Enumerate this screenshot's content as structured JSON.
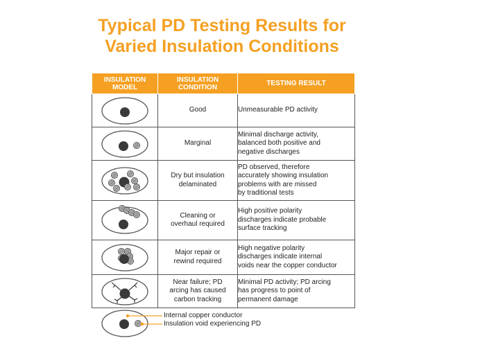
{
  "title": {
    "line1": "Typical PD Testing Results for",
    "line2": "Varied Insulation Conditions"
  },
  "headers": {
    "model_l1": "INSULATION",
    "model_l2": "MODEL",
    "condition_l1": "INSULATION",
    "condition_l2": "CONDITION",
    "result": "TESTING RESULT"
  },
  "rows": [
    {
      "model": "good",
      "condition": [
        "Good"
      ],
      "result": [
        "Unmeasurable PD activity"
      ]
    },
    {
      "model": "marginal",
      "condition": [
        "Marginal"
      ],
      "result": [
        "Minimal discharge activity,",
        "balanced both positive and",
        "negative discharges"
      ]
    },
    {
      "model": "delaminated",
      "condition": [
        "Dry but insulation",
        "delaminated"
      ],
      "result": [
        "PD observed, therefore",
        "accurately showing insulation",
        "problems with are missed",
        "by traditional tests"
      ]
    },
    {
      "model": "surface",
      "condition": [
        "Cleaning or",
        "overhaul required"
      ],
      "result": [
        "High positive polarity",
        "discharges indicate probable",
        "surface tracking"
      ]
    },
    {
      "model": "internal",
      "condition": [
        "Major repair or",
        "rewind required"
      ],
      "result": [
        "High negative polarity",
        "discharges indicate internal",
        "voids near the copper conductor"
      ]
    },
    {
      "model": "carbon",
      "condition": [
        "Near failure; PD",
        "arcing has caused",
        "carbon tracking"
      ],
      "result": [
        "Minimal PD activity; PD arcing",
        "has progress to point of",
        "permanent damage"
      ]
    }
  ],
  "legend": {
    "conductor": "Internal copper conductor",
    "void": "Insulation void experiencing PD"
  },
  "colors": {
    "accent": "#f5a022",
    "conductor": "#3a3a3a",
    "void": "#d0d0d0",
    "border": "#555555"
  }
}
